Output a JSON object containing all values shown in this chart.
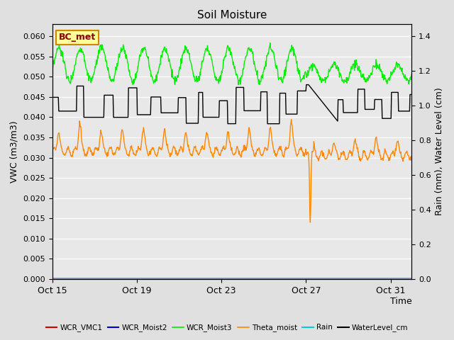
{
  "title": "Soil Moisture",
  "xlabel": "Time",
  "ylabel_left": "VWC (m3/m3)",
  "ylabel_right": "Rain (mm), Water Level (cm)",
  "ylim_left": [
    0.0,
    0.063
  ],
  "ylim_right": [
    0.0,
    1.47
  ],
  "yticks_left": [
    0.0,
    0.005,
    0.01,
    0.015,
    0.02,
    0.025,
    0.03,
    0.035,
    0.04,
    0.045,
    0.05,
    0.055,
    0.06
  ],
  "yticks_right": [
    0.0,
    0.2,
    0.4,
    0.6,
    0.8,
    1.0,
    1.2,
    1.4
  ],
  "xtick_labels": [
    "Oct 15",
    "Oct 19",
    "Oct 23",
    "Oct 27",
    "Oct 31"
  ],
  "xtick_days": [
    0,
    4,
    8,
    12,
    16
  ],
  "bg_color": "#e0e0e0",
  "plot_bg_color": "#e8e8e8",
  "legend_entries": [
    {
      "label": "WCR_VMC1",
      "color": "#cc0000",
      "lw": 1.5
    },
    {
      "label": "WCR_Moist2",
      "color": "#0000cc",
      "lw": 1.5
    },
    {
      "label": "WCR_Moist3",
      "color": "#00ee00",
      "lw": 1.2
    },
    {
      "label": "Theta_moist",
      "color": "#ff8800",
      "lw": 1.2
    },
    {
      "label": "Rain",
      "color": "#00cccc",
      "lw": 1.5
    },
    {
      "label": "WaterLevel_cm",
      "color": "#000000",
      "lw": 1.5
    }
  ],
  "annotation": {
    "label": "BC_met",
    "color": "#880000",
    "bg": "#ffff99",
    "edge": "#cc8800"
  },
  "figsize": [
    6.4,
    4.8
  ],
  "dpi": 100
}
